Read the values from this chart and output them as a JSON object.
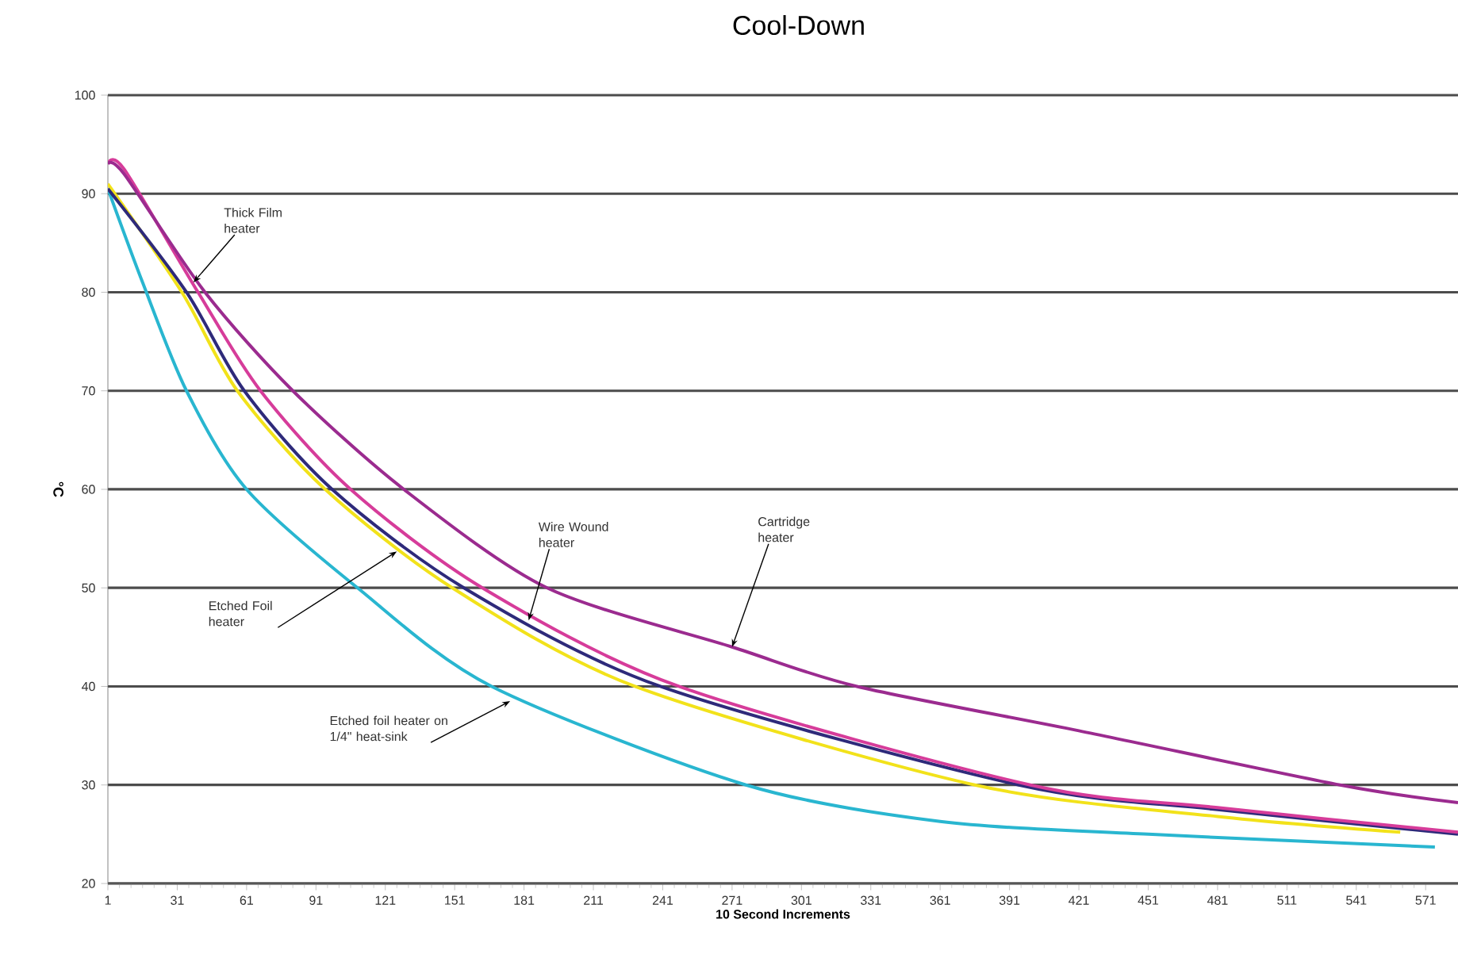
{
  "chart_data": {
    "type": "line",
    "title": "Cool-Down",
    "xlabel": "10 Second Increments",
    "ylabel": "°C",
    "xlim": [
      1,
      585
    ],
    "ylim": [
      20,
      100
    ],
    "xticks": [
      1,
      31,
      61,
      91,
      121,
      151,
      181,
      211,
      241,
      271,
      301,
      331,
      361,
      391,
      421,
      451,
      481,
      511,
      541,
      571
    ],
    "yticks": [
      20,
      30,
      40,
      50,
      60,
      70,
      80,
      90,
      100
    ],
    "grid": "y",
    "line_style": "solid",
    "series": [
      {
        "color": "#29b6d0",
        "x": [
          1,
          16,
          35,
          61,
          109,
          167,
          277,
          361,
          451,
          575
        ],
        "values": [
          90.5,
          81,
          70,
          60,
          50,
          40,
          30,
          26.3,
          25,
          23.7
        ]
      },
      {
        "color": "#f2e21a",
        "x": [
          1,
          33,
          57,
          95,
          150,
          229,
          376,
          481,
          560
        ],
        "values": [
          91,
          80,
          70,
          60,
          50,
          40,
          30,
          26.8,
          25.2
        ]
      },
      {
        "color": "#2e2a7a",
        "x": [
          1,
          35,
          60,
          98,
          155,
          240,
          395,
          481,
          585
        ],
        "values": [
          90.5,
          80,
          70,
          60,
          50,
          40,
          30,
          27.5,
          25
        ]
      },
      {
        "color": "#d63c9a",
        "x": [
          1,
          8,
          40,
          67,
          106,
          163,
          248,
          400,
          481,
          585
        ],
        "values": [
          93,
          92.5,
          80,
          70,
          60,
          50,
          40,
          30,
          27.7,
          25.2
        ]
      },
      {
        "color": "#9b2b8f",
        "x": [
          1,
          8,
          43,
          81,
          129,
          191,
          271,
          325,
          421,
          534,
          585
        ],
        "values": [
          93,
          92,
          80,
          70,
          60,
          50,
          44,
          40,
          35.5,
          30,
          28.2
        ]
      }
    ],
    "annotations": [
      {
        "text": "Thick Film heater",
        "x": 38,
        "y": 81
      },
      {
        "text": "Wire Wound heater",
        "x": 183,
        "y": 46.7
      },
      {
        "text": "Cartridge heater",
        "x": 271,
        "y": 44
      },
      {
        "text": "Etched Foil heater",
        "x": 126,
        "y": 53.7
      },
      {
        "text": "Etched foil heater on 1/4\" heat-sink",
        "x": 175,
        "y": 38.5
      }
    ]
  }
}
